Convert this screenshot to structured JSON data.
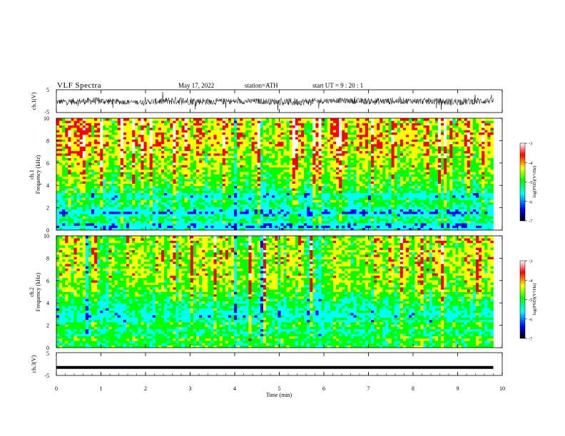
{
  "header": {
    "title": "VLF  Spectra",
    "date": "May 17, 2022",
    "station": "station=ATH",
    "start": "start  UT  =   9  : 20 : 1"
  },
  "colors": {
    "spectrogram_scale": [
      "#000000",
      "#0000ff",
      "#00ffff",
      "#00ff00",
      "#ffff00",
      "#ff0000",
      "#ffffff"
    ],
    "trace": "#000000"
  },
  "chart_data": [
    {
      "type": "line",
      "panel": "ch1-waveform",
      "ylabel": "ch.1(V)",
      "ylim": [
        -5,
        5
      ],
      "yticks": [
        "5",
        "-5"
      ],
      "xlim": [
        0,
        10
      ],
      "trace_level": [
        -0.3,
        0.1,
        -0.5,
        0.2,
        -0.2,
        0.0,
        -0.4,
        0.3,
        -0.1,
        0.1,
        -0.3,
        0.2
      ],
      "trace_amplitude": [
        1.2,
        1.6,
        1.0,
        1.8,
        1.4,
        1.2,
        1.7,
        1.1,
        1.5,
        1.3,
        1.6,
        1.4
      ]
    },
    {
      "type": "heatmap",
      "panel": "ch1-spectrogram",
      "ylabel": "ch.1\nFrequency  (kHz)",
      "ylabel_line1": "ch.1",
      "ylabel_line2": "Frequency  (kHz)",
      "ylim": [
        0,
        10
      ],
      "yticks": [
        "0",
        "2",
        "4",
        "6",
        "8",
        "10"
      ],
      "xlim": [
        0,
        10
      ],
      "colorbar": {
        "label": "log(PSD)(V²/Hz)",
        "range": [
          -7,
          -3
        ],
        "ticks": [
          "-3",
          "-4",
          "-5",
          "-6",
          "-7"
        ]
      },
      "frequency_kHz": [
        0.5,
        1.0,
        1.5,
        2.0,
        2.5,
        3.0,
        3.5,
        4.5,
        6.0,
        8.0,
        10.0
      ],
      "log_psd_profile": [
        -5.8,
        -5.2,
        -6.0,
        -5.4,
        -5.1,
        -5.6,
        -5.2,
        -4.8,
        -4.6,
        -4.2,
        -4.3
      ]
    },
    {
      "type": "heatmap",
      "panel": "ch2-spectrogram",
      "ylabel": "ch.2\nFrequency  (kHz)",
      "ylabel_line1": "ch.2",
      "ylabel_line2": "Frequency  (kHz)",
      "ylim": [
        0,
        10
      ],
      "yticks": [
        "0",
        "2",
        "4",
        "6",
        "8",
        "10"
      ],
      "xlim": [
        0,
        10
      ],
      "colorbar": {
        "label": "log(PSD)(V²/Hz)",
        "range": [
          -7,
          -3
        ],
        "ticks": [
          "-3",
          "-4",
          "-5",
          "-6",
          "-7"
        ]
      },
      "frequency_kHz": [
        0.5,
        1.0,
        1.5,
        2.0,
        2.5,
        3.0,
        3.5,
        4.5,
        6.0,
        8.0,
        10.0
      ],
      "log_psd_profile": [
        -4.9,
        -5.0,
        -5.3,
        -5.0,
        -5.4,
        -5.5,
        -5.2,
        -4.9,
        -4.6,
        -4.4,
        -4.5
      ]
    },
    {
      "type": "line",
      "panel": "ch3-waveform",
      "ylabel": "ch.3(V)",
      "ylim": [
        -5,
        5
      ],
      "yticks": [
        "5",
        "-5"
      ],
      "xlim": [
        0,
        10
      ],
      "trace_level": [
        -1.5,
        -1.5
      ],
      "trace_amplitude": [
        0.15,
        0.15
      ]
    }
  ],
  "x_axis": {
    "label": "Time  (min)",
    "xlim": [
      0,
      10
    ],
    "ticks": [
      "0",
      "1",
      "2",
      "3",
      "4",
      "5",
      "6",
      "7",
      "8",
      "9",
      "10"
    ],
    "data_end_min": 9.8
  }
}
